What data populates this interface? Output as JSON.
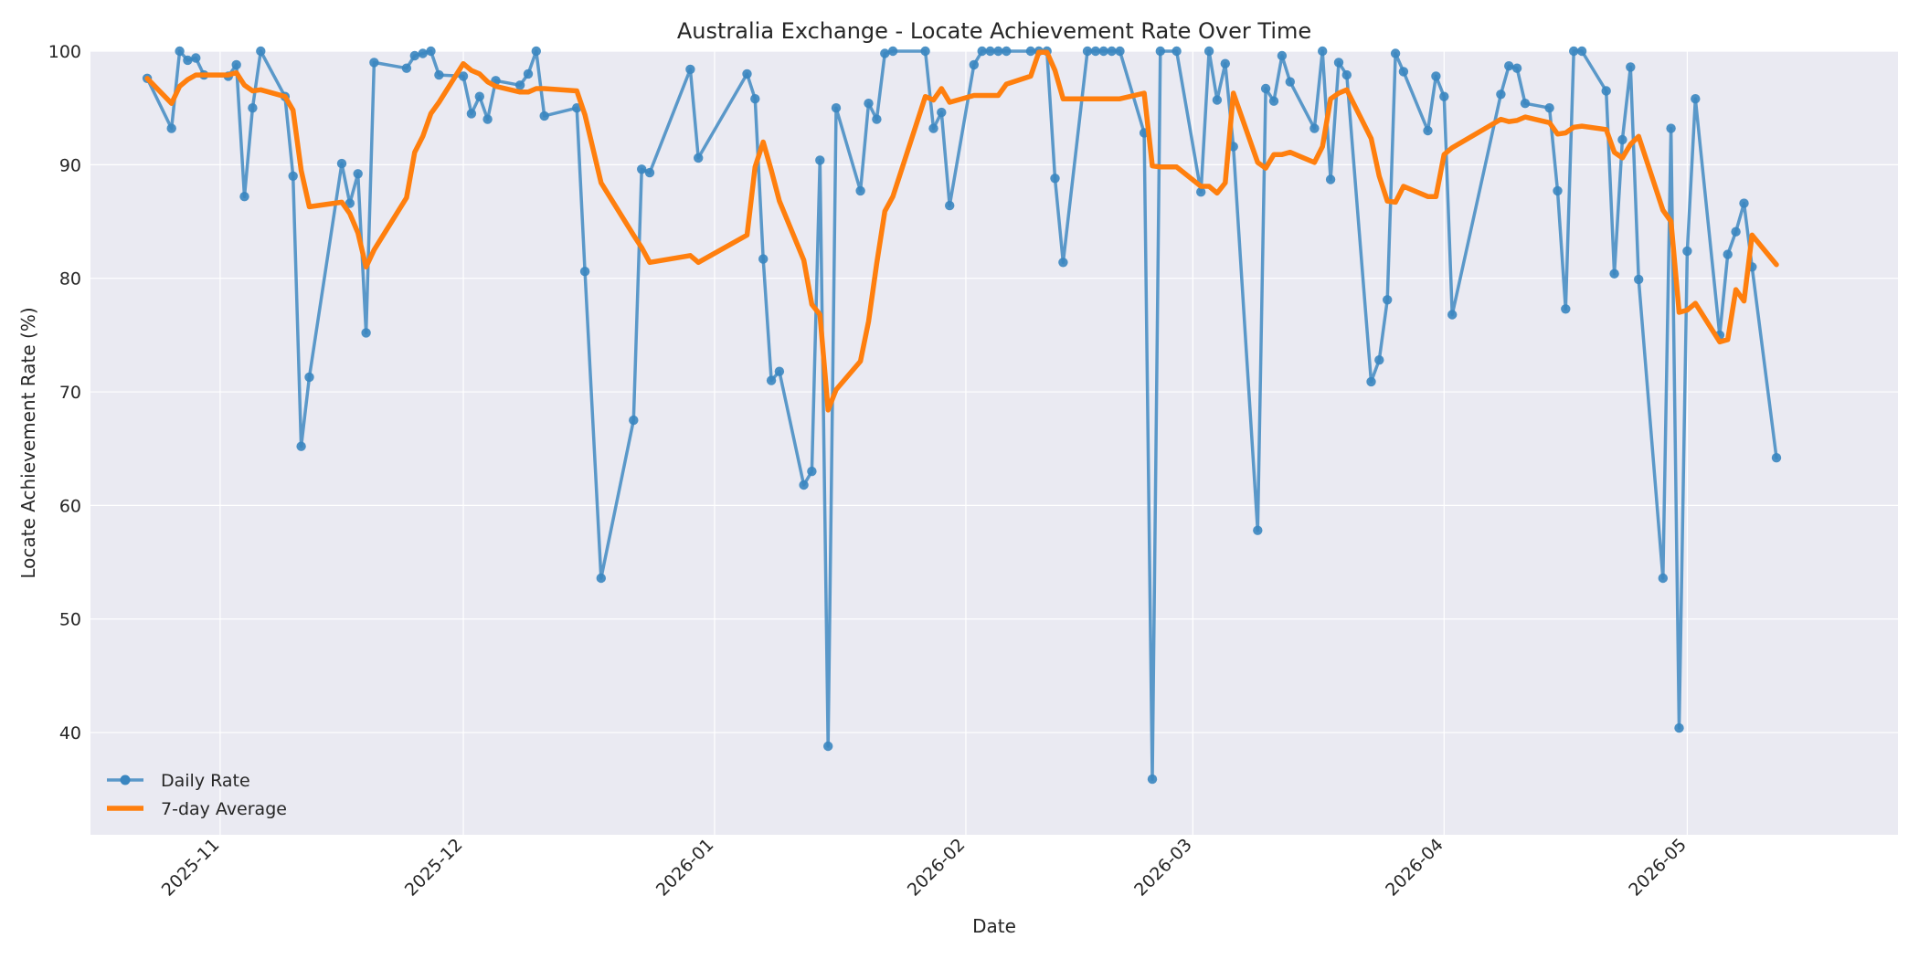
{
  "chart_data": {
    "type": "line",
    "title": "Australia Exchange - Locate Achievement Rate Over Time",
    "xlabel": "Date",
    "ylabel": "Locate Achievement Rate (%)",
    "xlim": [
      "2025-10-16",
      "2026-05-27"
    ],
    "ylim": [
      31,
      100
    ],
    "y_ticks": [
      40,
      50,
      60,
      70,
      80,
      90,
      100
    ],
    "x_ticks": [
      {
        "date": "2025-11-01",
        "label": "2025-11"
      },
      {
        "date": "2025-12-01",
        "label": "2025-12"
      },
      {
        "date": "2026-01-01",
        "label": "2026-01"
      },
      {
        "date": "2026-02-01",
        "label": "2026-02"
      },
      {
        "date": "2026-03-01",
        "label": "2026-03"
      },
      {
        "date": "2026-04-01",
        "label": "2026-04"
      },
      {
        "date": "2026-05-01",
        "label": "2026-05"
      }
    ],
    "grid": true,
    "legend_position": "lower-left",
    "series": [
      {
        "name": "Daily Rate",
        "color": "#3a86c0",
        "marker": "circle",
        "points": [
          [
            "2025-10-23",
            97.6
          ],
          [
            "2025-10-26",
            93.2
          ],
          [
            "2025-10-27",
            100.0
          ],
          [
            "2025-10-28",
            99.2
          ],
          [
            "2025-10-29",
            99.4
          ],
          [
            "2025-10-30",
            97.9
          ],
          [
            "2025-11-02",
            97.8
          ],
          [
            "2025-11-03",
            98.8
          ],
          [
            "2025-11-04",
            87.2
          ],
          [
            "2025-11-05",
            95.0
          ],
          [
            "2025-11-06",
            100.0
          ],
          [
            "2025-11-09",
            96.0
          ],
          [
            "2025-11-10",
            89.0
          ],
          [
            "2025-11-11",
            65.2
          ],
          [
            "2025-11-12",
            71.3
          ],
          [
            "2025-11-16",
            90.1
          ],
          [
            "2025-11-17",
            86.6
          ],
          [
            "2025-11-18",
            89.2
          ],
          [
            "2025-11-19",
            75.2
          ],
          [
            "2025-11-20",
            99.0
          ],
          [
            "2025-11-24",
            98.5
          ],
          [
            "2025-11-25",
            99.6
          ],
          [
            "2025-11-26",
            99.8
          ],
          [
            "2025-11-27",
            100.0
          ],
          [
            "2025-11-28",
            97.9
          ],
          [
            "2025-12-01",
            97.8
          ],
          [
            "2025-12-02",
            94.5
          ],
          [
            "2025-12-03",
            96.0
          ],
          [
            "2025-12-04",
            94.0
          ],
          [
            "2025-12-05",
            97.4
          ],
          [
            "2025-12-08",
            97.0
          ],
          [
            "2025-12-09",
            98.0
          ],
          [
            "2025-12-10",
            100.0
          ],
          [
            "2025-12-11",
            94.3
          ],
          [
            "2025-12-15",
            95.0
          ],
          [
            "2025-12-16",
            80.6
          ],
          [
            "2025-12-18",
            53.6
          ],
          [
            "2025-12-22",
            67.5
          ],
          [
            "2025-12-23",
            89.6
          ],
          [
            "2025-12-24",
            89.3
          ],
          [
            "2025-12-29",
            98.4
          ],
          [
            "2025-12-30",
            90.6
          ],
          [
            "2026-01-05",
            98.0
          ],
          [
            "2026-01-06",
            95.8
          ],
          [
            "2026-01-07",
            81.7
          ],
          [
            "2026-01-08",
            71.0
          ],
          [
            "2026-01-09",
            71.8
          ],
          [
            "2026-01-12",
            61.8
          ],
          [
            "2026-01-13",
            63.0
          ],
          [
            "2026-01-14",
            90.4
          ],
          [
            "2026-01-15",
            38.8
          ],
          [
            "2026-01-16",
            95.0
          ],
          [
            "2026-01-19",
            87.7
          ],
          [
            "2026-01-20",
            95.4
          ],
          [
            "2026-01-21",
            94.0
          ],
          [
            "2026-01-22",
            99.8
          ],
          [
            "2026-01-23",
            100.0
          ],
          [
            "2026-01-27",
            100.0
          ],
          [
            "2026-01-28",
            93.2
          ],
          [
            "2026-01-29",
            94.6
          ],
          [
            "2026-01-30",
            86.4
          ],
          [
            "2026-02-02",
            98.8
          ],
          [
            "2026-02-03",
            100.0
          ],
          [
            "2026-02-04",
            100.0
          ],
          [
            "2026-02-05",
            100.0
          ],
          [
            "2026-02-06",
            100.0
          ],
          [
            "2026-02-09",
            100.0
          ],
          [
            "2026-02-10",
            100.0
          ],
          [
            "2026-02-11",
            100.0
          ],
          [
            "2026-02-12",
            88.8
          ],
          [
            "2026-02-13",
            81.4
          ],
          [
            "2026-02-16",
            100.0
          ],
          [
            "2026-02-17",
            100.0
          ],
          [
            "2026-02-18",
            100.0
          ],
          [
            "2026-02-19",
            100.0
          ],
          [
            "2026-02-20",
            100.0
          ],
          [
            "2026-02-23",
            92.8
          ],
          [
            "2026-02-24",
            35.9
          ],
          [
            "2026-02-25",
            100.0
          ],
          [
            "2026-02-27",
            100.0
          ],
          [
            "2026-03-02",
            87.6
          ],
          [
            "2026-03-03",
            100.0
          ],
          [
            "2026-03-04",
            95.7
          ],
          [
            "2026-03-05",
            98.9
          ],
          [
            "2026-03-06",
            91.6
          ],
          [
            "2026-03-09",
            57.8
          ],
          [
            "2026-03-10",
            96.7
          ],
          [
            "2026-03-11",
            95.6
          ],
          [
            "2026-03-12",
            99.6
          ],
          [
            "2026-03-13",
            97.3
          ],
          [
            "2026-03-16",
            93.2
          ],
          [
            "2026-03-17",
            100.0
          ],
          [
            "2026-03-18",
            88.7
          ],
          [
            "2026-03-19",
            99.0
          ],
          [
            "2026-03-20",
            97.9
          ],
          [
            "2026-03-23",
            70.9
          ],
          [
            "2026-03-24",
            72.8
          ],
          [
            "2026-03-25",
            78.1
          ],
          [
            "2026-03-26",
            99.8
          ],
          [
            "2026-03-27",
            98.2
          ],
          [
            "2026-03-30",
            93.0
          ],
          [
            "2026-03-31",
            97.8
          ],
          [
            "2026-04-01",
            96.0
          ],
          [
            "2026-04-02",
            76.8
          ],
          [
            "2026-04-08",
            96.2
          ],
          [
            "2026-04-09",
            98.7
          ],
          [
            "2026-04-10",
            98.5
          ],
          [
            "2026-04-11",
            95.4
          ],
          [
            "2026-04-14",
            95.0
          ],
          [
            "2026-04-15",
            87.7
          ],
          [
            "2026-04-16",
            77.3
          ],
          [
            "2026-04-17",
            100.0
          ],
          [
            "2026-04-18",
            100.0
          ],
          [
            "2026-04-21",
            96.5
          ],
          [
            "2026-04-22",
            80.4
          ],
          [
            "2026-04-23",
            92.2
          ],
          [
            "2026-04-24",
            98.6
          ],
          [
            "2026-04-25",
            79.9
          ],
          [
            "2026-04-28",
            53.6
          ],
          [
            "2026-04-29",
            93.2
          ],
          [
            "2026-04-30",
            40.4
          ],
          [
            "2026-05-01",
            82.4
          ],
          [
            "2026-05-02",
            95.8
          ],
          [
            "2026-05-05",
            75.0
          ],
          [
            "2026-05-06",
            82.1
          ],
          [
            "2026-05-07",
            84.1
          ],
          [
            "2026-05-08",
            86.6
          ],
          [
            "2026-05-09",
            81.0
          ],
          [
            "2026-05-12",
            64.2
          ]
        ]
      },
      {
        "name": "7-day Average",
        "color": "#ff7f0e",
        "marker": "none",
        "points": [
          [
            "2025-10-23",
            97.6
          ],
          [
            "2025-10-26",
            95.4
          ],
          [
            "2025-10-27",
            96.9
          ],
          [
            "2025-10-28",
            97.5
          ],
          [
            "2025-10-29",
            97.9
          ],
          [
            "2025-10-30",
            97.9
          ],
          [
            "2025-11-02",
            97.9
          ],
          [
            "2025-11-03",
            98.1
          ],
          [
            "2025-11-04",
            97.0
          ],
          [
            "2025-11-05",
            96.5
          ],
          [
            "2025-11-06",
            96.6
          ],
          [
            "2025-11-09",
            96.0
          ],
          [
            "2025-11-10",
            94.8
          ],
          [
            "2025-11-11",
            89.5
          ],
          [
            "2025-11-12",
            86.3
          ],
          [
            "2025-11-16",
            86.7
          ],
          [
            "2025-11-17",
            85.7
          ],
          [
            "2025-11-18",
            84.0
          ],
          [
            "2025-11-19",
            81.0
          ],
          [
            "2025-11-20",
            82.5
          ],
          [
            "2025-11-24",
            87.1
          ],
          [
            "2025-11-25",
            91.1
          ],
          [
            "2025-11-26",
            92.5
          ],
          [
            "2025-11-27",
            94.5
          ],
          [
            "2025-11-28",
            95.5
          ],
          [
            "2025-12-01",
            98.9
          ],
          [
            "2025-12-02",
            98.3
          ],
          [
            "2025-12-03",
            98.0
          ],
          [
            "2025-12-04",
            97.3
          ],
          [
            "2025-12-05",
            96.9
          ],
          [
            "2025-12-08",
            96.4
          ],
          [
            "2025-12-09",
            96.4
          ],
          [
            "2025-12-10",
            96.7
          ],
          [
            "2025-12-11",
            96.7
          ],
          [
            "2025-12-15",
            96.5
          ],
          [
            "2025-12-16",
            94.4
          ],
          [
            "2025-12-18",
            88.4
          ],
          [
            "2025-12-22",
            83.8
          ],
          [
            "2025-12-23",
            82.7
          ],
          [
            "2025-12-24",
            81.4
          ],
          [
            "2025-12-29",
            82.0
          ],
          [
            "2025-12-30",
            81.4
          ],
          [
            "2026-01-05",
            83.8
          ],
          [
            "2026-01-06",
            89.8
          ],
          [
            "2026-01-07",
            92.0
          ],
          [
            "2026-01-08",
            89.5
          ],
          [
            "2026-01-09",
            86.8
          ],
          [
            "2026-01-12",
            81.6
          ],
          [
            "2026-01-13",
            77.7
          ],
          [
            "2026-01-14",
            76.8
          ],
          [
            "2026-01-15",
            68.4
          ],
          [
            "2026-01-16",
            70.2
          ],
          [
            "2026-01-19",
            72.7
          ],
          [
            "2026-01-20",
            76.2
          ],
          [
            "2026-01-21",
            81.3
          ],
          [
            "2026-01-22",
            85.9
          ],
          [
            "2026-01-23",
            87.2
          ],
          [
            "2026-01-27",
            96.0
          ],
          [
            "2026-01-28",
            95.7
          ],
          [
            "2026-01-29",
            96.7
          ],
          [
            "2026-01-30",
            95.5
          ],
          [
            "2026-02-02",
            96.1
          ],
          [
            "2026-02-03",
            96.1
          ],
          [
            "2026-02-04",
            96.1
          ],
          [
            "2026-02-05",
            96.1
          ],
          [
            "2026-02-06",
            97.1
          ],
          [
            "2026-02-09",
            97.8
          ],
          [
            "2026-02-10",
            99.9
          ],
          [
            "2026-02-11",
            99.9
          ],
          [
            "2026-02-12",
            98.3
          ],
          [
            "2026-02-13",
            95.8
          ],
          [
            "2026-02-16",
            95.8
          ],
          [
            "2026-02-17",
            95.8
          ],
          [
            "2026-02-18",
            95.8
          ],
          [
            "2026-02-19",
            95.8
          ],
          [
            "2026-02-20",
            95.8
          ],
          [
            "2026-02-23",
            96.3
          ],
          [
            "2026-02-24",
            89.9
          ],
          [
            "2026-02-25",
            89.8
          ],
          [
            "2026-02-27",
            89.8
          ],
          [
            "2026-03-02",
            88.1
          ],
          [
            "2026-03-03",
            88.1
          ],
          [
            "2026-03-04",
            87.5
          ],
          [
            "2026-03-05",
            88.4
          ],
          [
            "2026-03-06",
            96.3
          ],
          [
            "2026-03-09",
            90.2
          ],
          [
            "2026-03-10",
            89.7
          ],
          [
            "2026-03-11",
            90.9
          ],
          [
            "2026-03-12",
            90.9
          ],
          [
            "2026-03-13",
            91.1
          ],
          [
            "2026-03-16",
            90.2
          ],
          [
            "2026-03-17",
            91.6
          ],
          [
            "2026-03-18",
            95.8
          ],
          [
            "2026-03-19",
            96.3
          ],
          [
            "2026-03-20",
            96.6
          ],
          [
            "2026-03-23",
            92.3
          ],
          [
            "2026-03-24",
            89.0
          ],
          [
            "2026-03-25",
            86.8
          ],
          [
            "2026-03-26",
            86.7
          ],
          [
            "2026-03-27",
            88.1
          ],
          [
            "2026-03-30",
            87.2
          ],
          [
            "2026-03-31",
            87.2
          ],
          [
            "2026-04-01",
            90.9
          ],
          [
            "2026-04-02",
            91.5
          ],
          [
            "2026-04-08",
            94.0
          ],
          [
            "2026-04-09",
            93.8
          ],
          [
            "2026-04-10",
            93.9
          ],
          [
            "2026-04-11",
            94.2
          ],
          [
            "2026-04-14",
            93.7
          ],
          [
            "2026-04-15",
            92.7
          ],
          [
            "2026-04-16",
            92.8
          ],
          [
            "2026-04-17",
            93.3
          ],
          [
            "2026-04-18",
            93.4
          ],
          [
            "2026-04-21",
            93.1
          ],
          [
            "2026-04-22",
            91.1
          ],
          [
            "2026-04-23",
            90.6
          ],
          [
            "2026-04-24",
            91.8
          ],
          [
            "2026-04-25",
            92.5
          ],
          [
            "2026-04-28",
            86.0
          ],
          [
            "2026-04-29",
            85.0
          ],
          [
            "2026-04-30",
            77.0
          ],
          [
            "2026-05-01",
            77.2
          ],
          [
            "2026-05-02",
            77.8
          ],
          [
            "2026-05-05",
            74.4
          ],
          [
            "2026-05-06",
            74.6
          ],
          [
            "2026-05-07",
            79.0
          ],
          [
            "2026-05-08",
            78.0
          ],
          [
            "2026-05-09",
            83.8
          ],
          [
            "2026-05-12",
            81.2
          ]
        ]
      }
    ]
  }
}
